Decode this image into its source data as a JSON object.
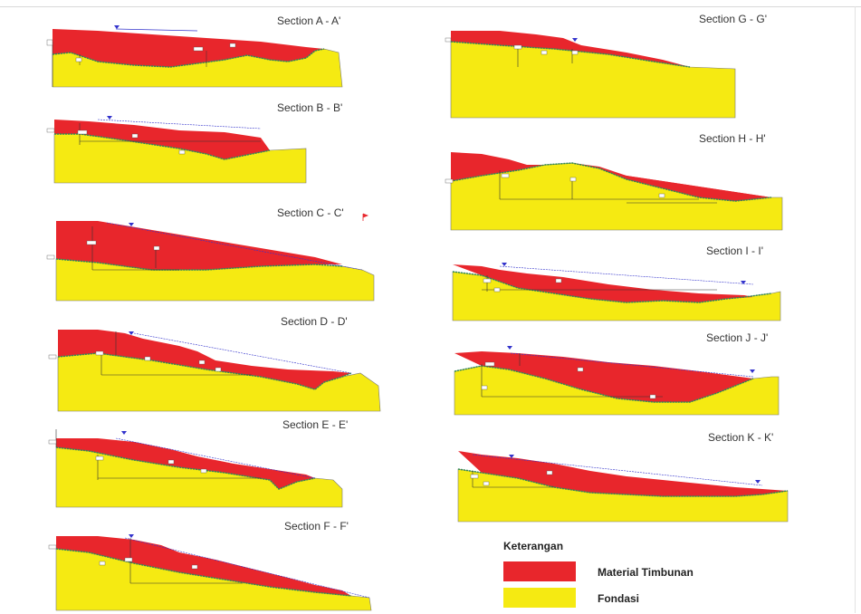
{
  "sections": [
    {
      "id": "A",
      "title": "Section A - A'"
    },
    {
      "id": "B",
      "title": "Section B - B'"
    },
    {
      "id": "C",
      "title": "Section C - C'"
    },
    {
      "id": "D",
      "title": "Section D - D'"
    },
    {
      "id": "E",
      "title": "Section E - E'"
    },
    {
      "id": "F",
      "title": "Section F - F'"
    },
    {
      "id": "G",
      "title": "Section G - G'"
    },
    {
      "id": "H",
      "title": "Section H - H'"
    },
    {
      "id": "I",
      "title": "Section I - I'"
    },
    {
      "id": "J",
      "title": "Section J - J'"
    },
    {
      "id": "K",
      "title": "Section K - K'"
    }
  ],
  "legend": {
    "title": "Keterangan",
    "items": [
      {
        "label": "Material Timbunan",
        "color": "#e8262c"
      },
      {
        "label": "Fondasi",
        "color": "#f5ea12"
      }
    ]
  },
  "colors": {
    "fill": "#e8262c",
    "foundation": "#f5ea12",
    "interface": "#2e8b57",
    "design_line": "#3333cc"
  }
}
